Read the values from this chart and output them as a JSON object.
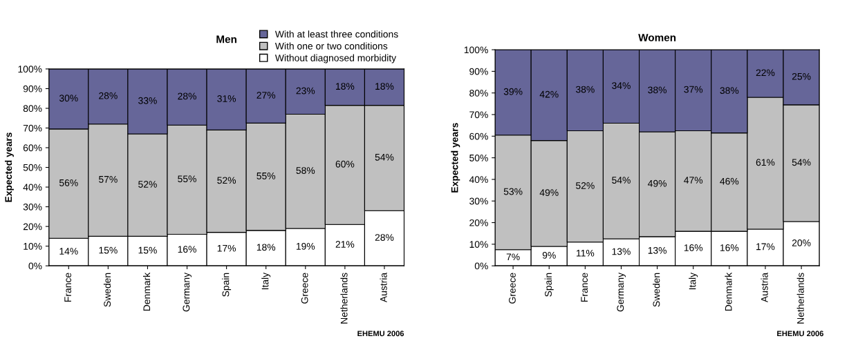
{
  "chart_data": [
    {
      "type": "bar",
      "stacked": true,
      "title": "Men",
      "ylabel": "Expected years",
      "categories": [
        "France",
        "Sweden",
        "Denmark",
        "Germany",
        "Spain",
        "Italy",
        "Greece",
        "Netherlands",
        "Austria"
      ],
      "series": [
        {
          "name": "Without diagnosed morbidity",
          "color": "#ffffff",
          "values": [
            14,
            15,
            15,
            16,
            17,
            18,
            19,
            21,
            28
          ],
          "value_labels": [
            "14%",
            "15%",
            "15%",
            "16%",
            "17%",
            "18%",
            "19%",
            "21%",
            "28%"
          ]
        },
        {
          "name": "With one or two conditions",
          "color": "#c0c0c0",
          "values": [
            55.5,
            57,
            52,
            55.5,
            52,
            54.5,
            58,
            60.5,
            53.5
          ],
          "value_labels": [
            "56%",
            "57%",
            "52%",
            "55%",
            "52%",
            "55%",
            "58%",
            "60%",
            "54%"
          ]
        },
        {
          "name": "With at least three conditions",
          "color": "#666699",
          "values": [
            30.5,
            28,
            33,
            28.5,
            31,
            27.5,
            23,
            18.5,
            18.5
          ],
          "value_labels": [
            "30%",
            "28%",
            "33%",
            "28%",
            "31%",
            "27%",
            "23%",
            "18%",
            "18%"
          ]
        }
      ],
      "ylim": [
        0,
        100
      ],
      "yticks": [
        {
          "value": 0,
          "label": "0%"
        },
        {
          "value": 10,
          "label": "10%"
        },
        {
          "value": 20,
          "label": "20%"
        },
        {
          "value": 30,
          "label": "30%"
        },
        {
          "value": 40,
          "label": "40%"
        },
        {
          "value": 50,
          "label": "50%"
        },
        {
          "value": 60,
          "label": "60%"
        },
        {
          "value": 70,
          "label": "70%"
        },
        {
          "value": 80,
          "label": "80%"
        },
        {
          "value": 90,
          "label": "90%"
        },
        {
          "value": 100,
          "label": "100%"
        }
      ],
      "legend": "top right",
      "grid": false,
      "annotations": [
        "EHEMU 2006"
      ]
    },
    {
      "type": "bar",
      "stacked": true,
      "title": "Women",
      "ylabel": "Expected years",
      "categories": [
        "Greece",
        "Spain",
        "France",
        "Germany",
        "Sweden",
        "Italy",
        "Denmark",
        "Austria",
        "Netherlands"
      ],
      "series": [
        {
          "color": "#ffffff",
          "values": [
            7.5,
            9,
            11,
            12.5,
            13.5,
            16,
            16,
            17,
            20.5
          ],
          "value_labels": [
            "7%",
            "9%",
            "11%",
            "13%",
            "13%",
            "16%",
            "16%",
            "17%",
            "20%"
          ]
        },
        {
          "color": "#c0c0c0",
          "values": [
            53,
            49,
            51.5,
            53.5,
            48.5,
            46.5,
            45.5,
            61,
            54
          ],
          "value_labels": [
            "53%",
            "49%",
            "52%",
            "54%",
            "49%",
            "47%",
            "46%",
            "61%",
            "54%"
          ]
        },
        {
          "color": "#666699",
          "values": [
            39.5,
            42,
            37.5,
            34,
            38,
            37.5,
            38.5,
            22,
            25.5
          ],
          "value_labels": [
            "39%",
            "42%",
            "38%",
            "34%",
            "38%",
            "37%",
            "38%",
            "22%",
            "25%"
          ]
        }
      ],
      "ylim": [
        0,
        100
      ],
      "yticks": [
        {
          "value": 0,
          "label": "0%"
        },
        {
          "value": 10,
          "label": "10%"
        },
        {
          "value": 20,
          "label": "20%"
        },
        {
          "value": 30,
          "label": "30%"
        },
        {
          "value": 40,
          "label": "40%"
        },
        {
          "value": 50,
          "label": "50%"
        },
        {
          "value": 60,
          "label": "60%"
        },
        {
          "value": 70,
          "label": "70%"
        },
        {
          "value": 80,
          "label": "80%"
        },
        {
          "value": 90,
          "label": "90%"
        },
        {
          "value": 100,
          "label": "100%"
        }
      ],
      "grid": false,
      "annotations": [
        "EHEMU 2006"
      ]
    }
  ]
}
